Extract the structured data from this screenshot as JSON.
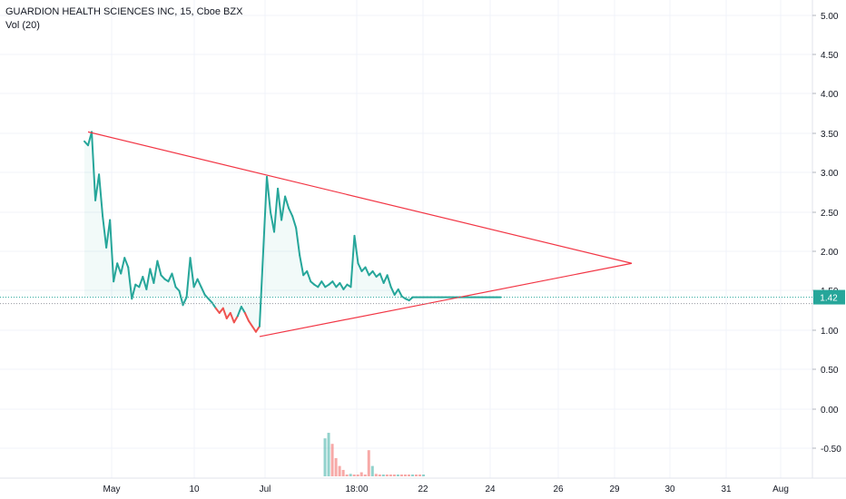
{
  "header": {
    "symbol_title": "GUARDION HEALTH SCIENCES INC, 15, Cboe BZX",
    "indicator_label": "Vol (20)"
  },
  "price_badge": "1.42",
  "colors": {
    "up": "#26a69a",
    "down": "#ef5350",
    "trendline": "#f23645",
    "grid": "#f0f3fa",
    "axis_text": "#131722",
    "badge": "#26a69a"
  },
  "chart_data": {
    "type": "line",
    "title": "GUARDION HEALTH SCIENCES INC, 15, Cboe BZX",
    "x_tick_labels": [
      "May",
      "10",
      "Jul",
      "18:00",
      "22",
      "24",
      "26",
      "29",
      "30",
      "31",
      "Aug"
    ],
    "y_tick_labels": [
      "5.00",
      "4.50",
      "4.00",
      "3.50",
      "3.00",
      "2.50",
      "2.00",
      "1.50",
      "1.00",
      "0.50",
      "0.00",
      "-0.50"
    ],
    "price_ylim": [
      1.0,
      5.0
    ],
    "last_price": 1.42,
    "price_series": {
      "x_index": [
        0,
        2,
        4,
        6,
        8,
        10,
        12,
        14,
        16,
        18,
        20,
        22,
        24,
        26,
        28,
        30,
        32,
        34,
        36,
        38,
        40,
        42,
        44,
        46,
        48,
        50,
        52,
        54,
        56,
        58,
        60,
        62,
        64,
        66,
        68,
        70,
        72,
        74,
        76,
        78,
        80,
        82,
        84,
        86,
        88,
        90,
        92,
        94,
        96,
        98,
        100,
        102,
        104,
        106,
        108,
        110,
        112,
        114,
        116,
        118,
        120,
        122,
        124,
        126,
        128,
        130,
        132,
        134,
        136,
        138,
        140,
        142,
        144,
        146,
        148,
        150,
        152,
        154,
        156,
        158,
        160,
        162,
        164,
        166,
        168,
        170,
        172,
        174,
        176,
        178,
        180,
        182,
        184,
        186,
        188,
        190,
        192,
        194,
        196,
        198,
        200,
        202,
        204,
        206,
        208,
        210,
        212,
        214,
        216,
        218,
        220,
        222,
        224,
        226,
        228
      ],
      "values": [
        3.4,
        3.35,
        3.52,
        2.65,
        2.98,
        2.45,
        2.05,
        2.4,
        1.62,
        1.85,
        1.72,
        1.92,
        1.8,
        1.4,
        1.58,
        1.55,
        1.68,
        1.52,
        1.78,
        1.6,
        1.88,
        1.7,
        1.65,
        1.62,
        1.72,
        1.55,
        1.5,
        1.32,
        1.42,
        1.92,
        1.55,
        1.65,
        1.55,
        1.45,
        1.4,
        1.35,
        1.28,
        1.22,
        1.28,
        1.15,
        1.22,
        1.1,
        1.18,
        1.3,
        1.22,
        1.12,
        1.05,
        0.98,
        1.05,
        2.0,
        2.95,
        2.5,
        2.25,
        2.8,
        2.4,
        2.7,
        2.55,
        2.45,
        2.3,
        1.95,
        1.7,
        1.75,
        1.62,
        1.58,
        1.55,
        1.62,
        1.55,
        1.58,
        1.62,
        1.55,
        1.6,
        1.52,
        1.58,
        1.55,
        2.2,
        1.85,
        1.75,
        1.8,
        1.7,
        1.75,
        1.68,
        1.72,
        1.6,
        1.7,
        1.55,
        1.45,
        1.52,
        1.43,
        1.4,
        1.38,
        1.42,
        1.42,
        1.42,
        1.42,
        1.42,
        1.42,
        1.42,
        1.42,
        1.42,
        1.42,
        1.42,
        1.42,
        1.42,
        1.42,
        1.42,
        1.42,
        1.42,
        1.42,
        1.42,
        1.42,
        1.42,
        1.42,
        1.42,
        1.42,
        1.42
      ]
    },
    "trend_lines": [
      {
        "from": [
          2,
          3.52
        ],
        "to": [
          300,
          1.85
        ]
      },
      {
        "from": [
          96,
          0.92
        ],
        "to": [
          300,
          1.85
        ]
      }
    ],
    "volume": {
      "x_index": [
        54,
        56,
        58,
        60,
        62,
        64,
        66,
        68,
        70,
        72,
        74,
        76,
        78,
        80,
        82,
        84,
        86,
        88,
        90,
        92,
        94,
        96,
        98,
        100,
        102,
        104,
        106,
        108
      ],
      "values": [
        0.55,
        0.62,
        0.48,
        0.3,
        0.2,
        0.15,
        0.08,
        0.1,
        0.05,
        0.07,
        0.12,
        0.05,
        0.4,
        0.2,
        0.1,
        0.06,
        0.08,
        0.05,
        0.04,
        0.06,
        0.03,
        0.05,
        0.04,
        0.03,
        0.02,
        0.03,
        0.02,
        0.01
      ],
      "colors": [
        "up",
        "up",
        "down",
        "down",
        "down",
        "down",
        "down",
        "up",
        "down",
        "down",
        "down",
        "down",
        "down",
        "up",
        "down",
        "down",
        "up",
        "down",
        "down",
        "down",
        "up",
        "down",
        "down",
        "down",
        "up",
        "down",
        "down",
        "up"
      ]
    }
  }
}
